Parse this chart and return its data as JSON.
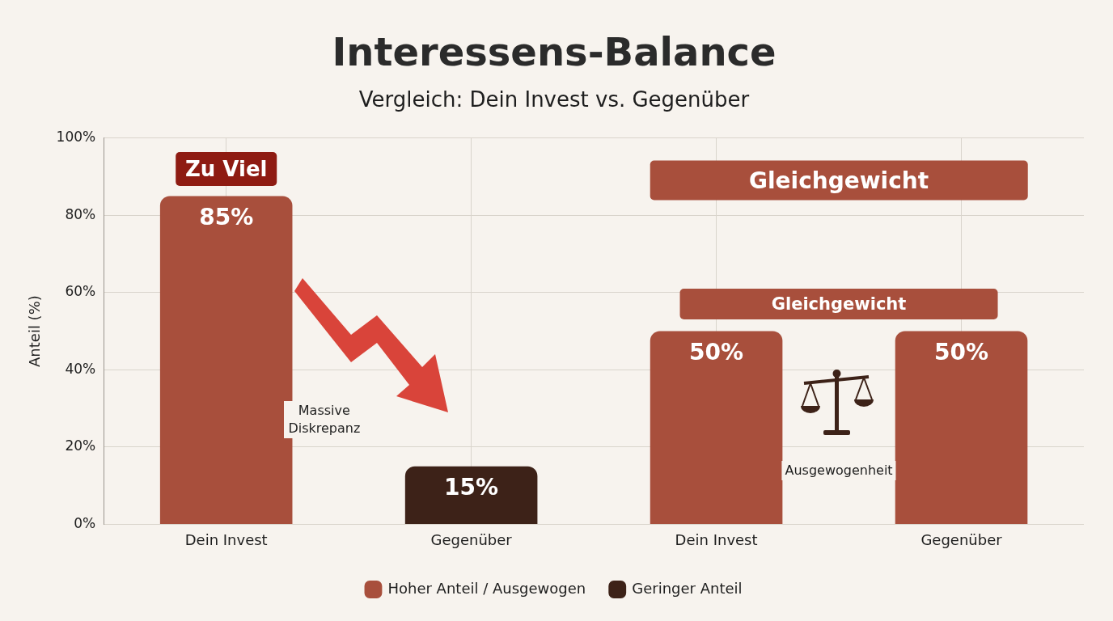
{
  "chart_data": {
    "type": "bar",
    "title": "Interessens-Balance",
    "subtitle": "Vergleich: Dein Invest vs. Gegenüber",
    "ylabel": "Anteil (%)",
    "categories": [
      "Dein Invest",
      "Gegenüber",
      "Dein Invest",
      "Gegenüber"
    ],
    "series": [
      {
        "name": "Hoher Anteil / Ausgewogen",
        "color": "#a84f3c",
        "values": [
          85,
          null,
          50,
          50
        ],
        "value_labels": [
          "85%",
          null,
          "50%",
          "50%"
        ]
      },
      {
        "name": "Geringer Anteil",
        "color": "#3d2218",
        "values": [
          null,
          15,
          null,
          null
        ],
        "value_labels": [
          null,
          "15%",
          null,
          null
        ]
      }
    ],
    "stacked": true,
    "ylim": [
      0,
      100
    ],
    "yticks": [
      {
        "value": 0,
        "label": "0%"
      },
      {
        "value": 20,
        "label": "20%"
      },
      {
        "value": 40,
        "label": "40%"
      },
      {
        "value": 60,
        "label": "60%"
      },
      {
        "value": 80,
        "label": "80%"
      },
      {
        "value": 100,
        "label": "100%"
      }
    ],
    "annotations": [
      "Zu Viel",
      "Massive Diskrepanz",
      "Gleichgewicht",
      "Gleichgewicht",
      "Ausgewogenheit"
    ],
    "grid": true,
    "legend": "bottom"
  }
}
